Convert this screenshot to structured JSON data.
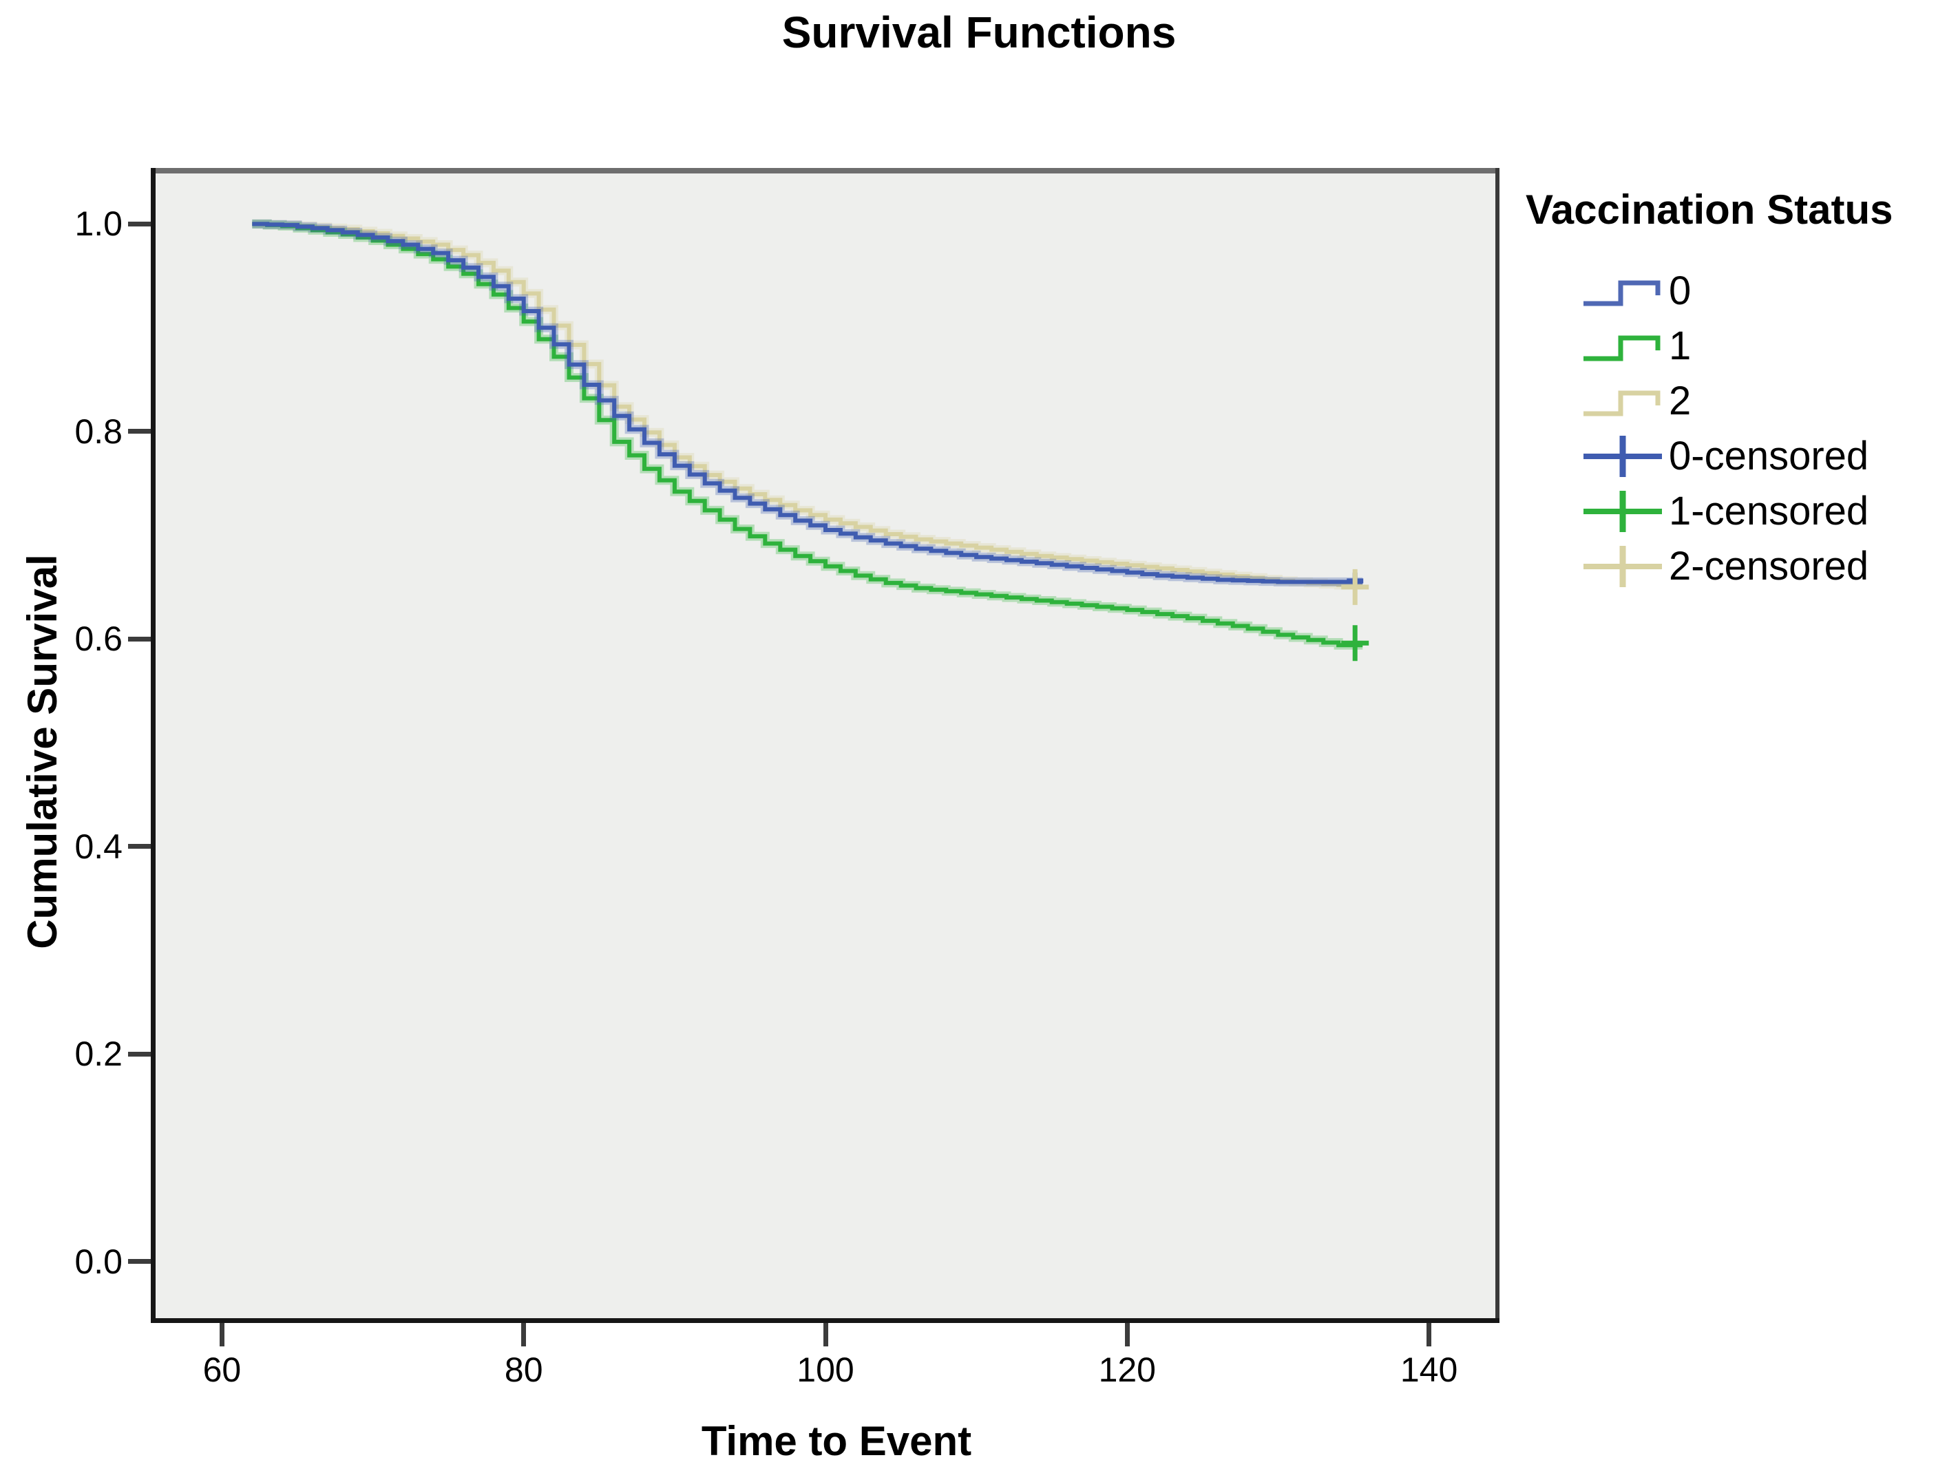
{
  "title": "Survival Functions",
  "x_axis": {
    "label": "Time to Event",
    "ticks": [
      {
        "value": 60,
        "label": "60"
      },
      {
        "value": 80,
        "label": "80"
      },
      {
        "value": 100,
        "label": "100"
      },
      {
        "value": 120,
        "label": "120"
      },
      {
        "value": 140,
        "label": "140"
      }
    ]
  },
  "y_axis": {
    "label": "Cumulative Survival",
    "ticks": [
      {
        "value": 1.0,
        "label": "1.0"
      },
      {
        "value": 0.8,
        "label": "0.8"
      },
      {
        "value": 0.6,
        "label": "0.6"
      },
      {
        "value": 0.4,
        "label": "0.4"
      },
      {
        "value": 0.2,
        "label": "0.2"
      },
      {
        "value": 0.0,
        "label": "0.0"
      }
    ]
  },
  "legend": {
    "title": "Vaccination Status",
    "items": [
      {
        "label": "0",
        "color": "#4f68b4",
        "glyph": "step"
      },
      {
        "label": "1",
        "color": "#2eb23c",
        "glyph": "step"
      },
      {
        "label": "2",
        "color": "#d8d2a2",
        "glyph": "step"
      },
      {
        "label": "0-censored",
        "color": "#3f5cb0",
        "glyph": "cross"
      },
      {
        "label": "1-censored",
        "color": "#2eb23c",
        "glyph": "cross"
      },
      {
        "label": "2-censored",
        "color": "#d8d2a2",
        "glyph": "cross"
      }
    ]
  },
  "chart_data": {
    "type": "line",
    "step": true,
    "title": "Survival Functions",
    "xlabel": "Time to Event",
    "ylabel": "Cumulative Survival",
    "xlim": [
      55.6,
      144.4
    ],
    "ylim": [
      -0.0547,
      1.0487
    ],
    "x_ticks": [
      60,
      80,
      100,
      120,
      140
    ],
    "y_ticks": [
      0.0,
      0.2,
      0.4,
      0.6,
      0.8,
      1.0
    ],
    "grid": false,
    "legend_position": "right",
    "plot_background": "#eeefed",
    "x": [
      62,
      64,
      66,
      68,
      70,
      72,
      74,
      76,
      78,
      80,
      82,
      84,
      86,
      88,
      90,
      92,
      94,
      96,
      98,
      100,
      102,
      104,
      106,
      108,
      110,
      112,
      114,
      116,
      118,
      120,
      122,
      124,
      126,
      128,
      130,
      132,
      134
    ],
    "series": [
      {
        "name": "0",
        "color": "#3f5cb0",
        "values": [
          1.0,
          0.999,
          0.996,
          0.992,
          0.987,
          0.98,
          0.972,
          0.958,
          0.94,
          0.916,
          0.884,
          0.845,
          0.815,
          0.789,
          0.767,
          0.75,
          0.736,
          0.725,
          0.714,
          0.705,
          0.698,
          0.692,
          0.687,
          0.683,
          0.679,
          0.676,
          0.673,
          0.67,
          0.667,
          0.664,
          0.661,
          0.659,
          0.657,
          0.656,
          0.655,
          0.655,
          0.655
        ]
      },
      {
        "name": "1",
        "color": "#2eb23c",
        "values": [
          1.0,
          0.998,
          0.994,
          0.99,
          0.984,
          0.976,
          0.966,
          0.952,
          0.932,
          0.906,
          0.872,
          0.832,
          0.79,
          0.764,
          0.742,
          0.724,
          0.706,
          0.692,
          0.68,
          0.67,
          0.661,
          0.654,
          0.649,
          0.646,
          0.643,
          0.64,
          0.637,
          0.634,
          0.631,
          0.628,
          0.624,
          0.62,
          0.615,
          0.61,
          0.604,
          0.599,
          0.594
        ]
      },
      {
        "name": "2",
        "color": "#d8d2a2",
        "values": [
          1.0,
          0.999,
          0.997,
          0.995,
          0.991,
          0.986,
          0.98,
          0.97,
          0.955,
          0.933,
          0.902,
          0.865,
          0.824,
          0.799,
          0.775,
          0.758,
          0.745,
          0.734,
          0.724,
          0.715,
          0.708,
          0.701,
          0.696,
          0.692,
          0.688,
          0.684,
          0.68,
          0.677,
          0.674,
          0.671,
          0.668,
          0.665,
          0.662,
          0.659,
          0.656,
          0.654,
          0.652
        ]
      }
    ],
    "line_end_x": 135.6,
    "censored_points": [
      {
        "series": "0",
        "x": 135.1,
        "y": 0.656,
        "height": 24,
        "width": 24
      },
      {
        "series": "2",
        "x": 135.1,
        "y": 0.65,
        "height": 52,
        "width": 40
      },
      {
        "series": "1",
        "x": 135.1,
        "y": 0.596,
        "height": 52,
        "width": 40
      }
    ],
    "draw_order": [
      "2",
      "1",
      "0"
    ]
  }
}
